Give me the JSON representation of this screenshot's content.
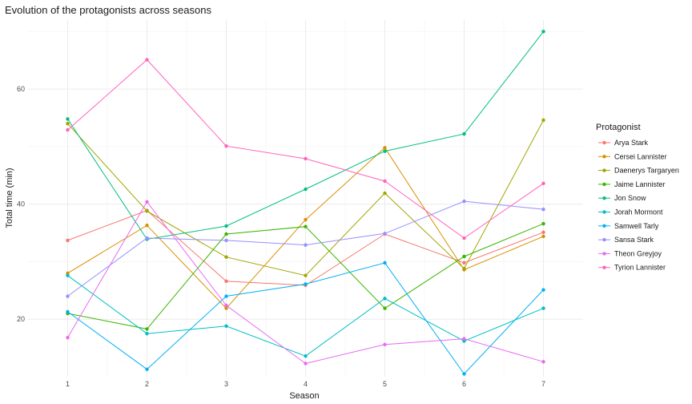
{
  "chart_data": {
    "type": "line",
    "title": "Evolution of the protagonists across seasons",
    "xlabel": "Season",
    "ylabel": "Total time (min)",
    "x": [
      1,
      2,
      3,
      4,
      5,
      6,
      7
    ],
    "xlim": [
      0.5,
      7.5
    ],
    "ylim": [
      10,
      72
    ],
    "y_ticks": [
      20,
      40,
      60
    ],
    "grid": true,
    "legend": {
      "title": "Protagonist",
      "placement": "right"
    },
    "series": [
      {
        "name": "Arya Stark",
        "color": "#F8766D",
        "values": [
          33.7,
          38.9,
          26.6,
          25.9,
          34.8,
          29.8,
          35.1
        ]
      },
      {
        "name": "Cersei Lannister",
        "color": "#D89000",
        "values": [
          28.0,
          36.3,
          21.9,
          37.3,
          49.8,
          28.6,
          34.4
        ]
      },
      {
        "name": "Daenerys Targaryen",
        "color": "#A3A500",
        "values": [
          54.0,
          38.8,
          30.8,
          27.6,
          41.9,
          28.8,
          54.6
        ]
      },
      {
        "name": "Jaime Lannister",
        "color": "#39B600",
        "values": [
          21.0,
          18.3,
          34.8,
          36.1,
          21.9,
          30.9,
          36.6
        ]
      },
      {
        "name": "Jon Snow",
        "color": "#00BF7D",
        "values": [
          54.8,
          33.9,
          36.2,
          42.6,
          49.2,
          52.2,
          70.0
        ]
      },
      {
        "name": "Jorah Mormont",
        "color": "#00BFC4",
        "values": [
          27.6,
          17.5,
          18.8,
          13.6,
          23.6,
          16.2,
          21.9
        ]
      },
      {
        "name": "Samwell Tarly",
        "color": "#00B0F6",
        "values": [
          21.3,
          11.3,
          24.0,
          26.1,
          29.8,
          10.5,
          25.1
        ]
      },
      {
        "name": "Sansa Stark",
        "color": "#9590FF",
        "values": [
          24.0,
          34.1,
          33.7,
          32.9,
          34.9,
          40.5,
          39.1
        ]
      },
      {
        "name": "Theon Greyjoy",
        "color": "#E76BF3",
        "values": [
          16.8,
          40.4,
          22.4,
          12.3,
          15.6,
          16.6,
          12.6
        ]
      },
      {
        "name": "Tyrion Lannister",
        "color": "#FF62BC",
        "values": [
          52.9,
          65.1,
          50.1,
          47.9,
          44.0,
          34.1,
          43.6
        ]
      }
    ]
  }
}
